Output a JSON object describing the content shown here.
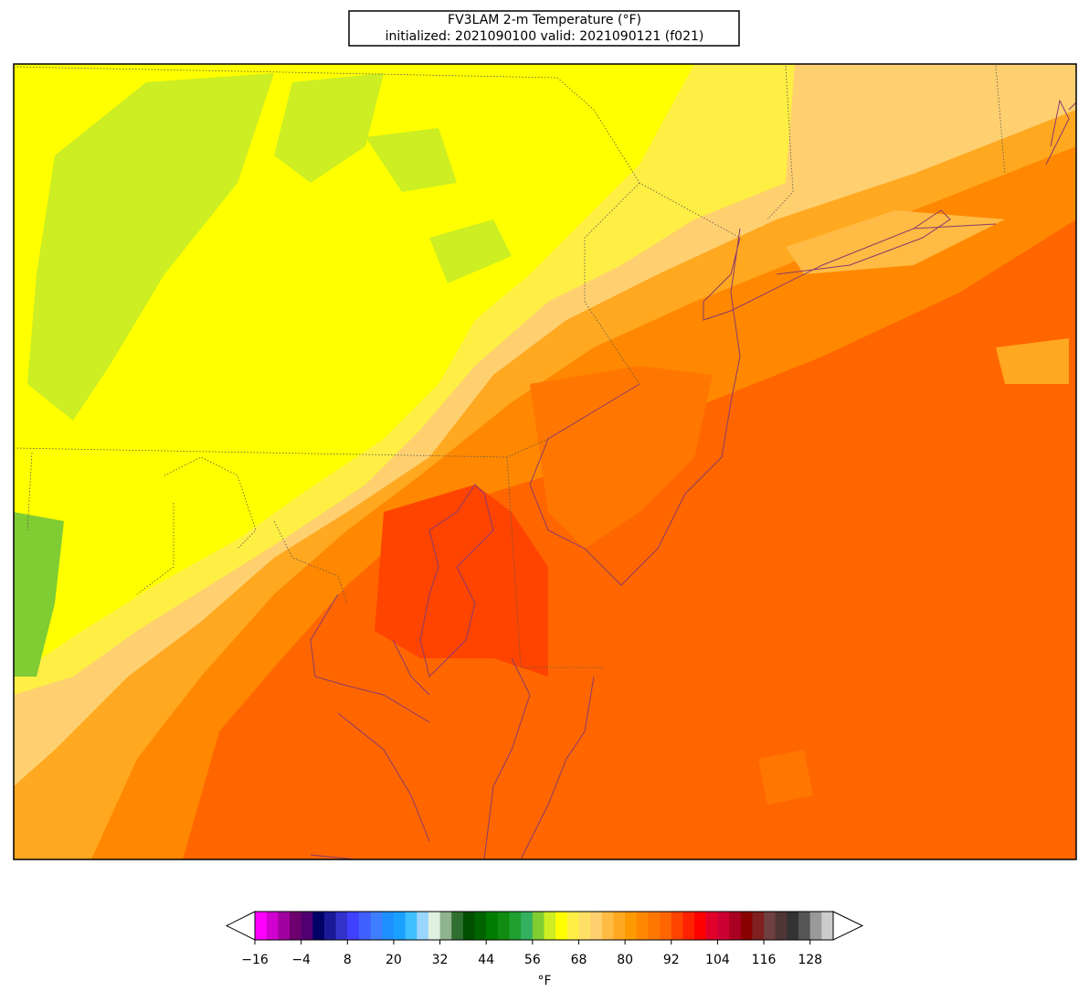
{
  "title": {
    "line1": "FV3LAM 2-m Temperature (°F)",
    "line2": "initialized: 2021090100 valid: 2021090121 (f021)"
  },
  "colorbar": {
    "label": "°F",
    "clim": [
      -16,
      134
    ],
    "colors": [
      "#ff00ff",
      "#d100d1",
      "#a000a0",
      "#6e006e",
      "#500070",
      "#000066",
      "#1a1a99",
      "#3333cc",
      "#4040ff",
      "#3f5fff",
      "#3f7fff",
      "#1e90ff",
      "#1aa0ff",
      "#3fbfff",
      "#99d6ff",
      "#e0f0e0",
      "#8fb38f",
      "#2f6f2f",
      "#005000",
      "#006400",
      "#007d00",
      "#108c10",
      "#20a030",
      "#33b060",
      "#80cc33",
      "#ccee22",
      "#ffff00",
      "#ffee44",
      "#ffe066",
      "#ffd070",
      "#ffbb44",
      "#ffa820",
      "#ff9900",
      "#ff8800",
      "#ff7700",
      "#ff6600",
      "#ff4400",
      "#ff2200",
      "#ff0000",
      "#e0002a",
      "#cc0033",
      "#aa0022",
      "#880000",
      "#7f1f1f",
      "#704040",
      "#503535",
      "#333333",
      "#555555",
      "#999999",
      "#cccccc"
    ],
    "ticks": [
      {
        "value": -16,
        "label": "−16"
      },
      {
        "value": -4,
        "label": "−4"
      },
      8,
      20,
      32,
      44,
      56,
      68,
      80,
      92,
      104,
      116,
      128
    ]
  }
}
